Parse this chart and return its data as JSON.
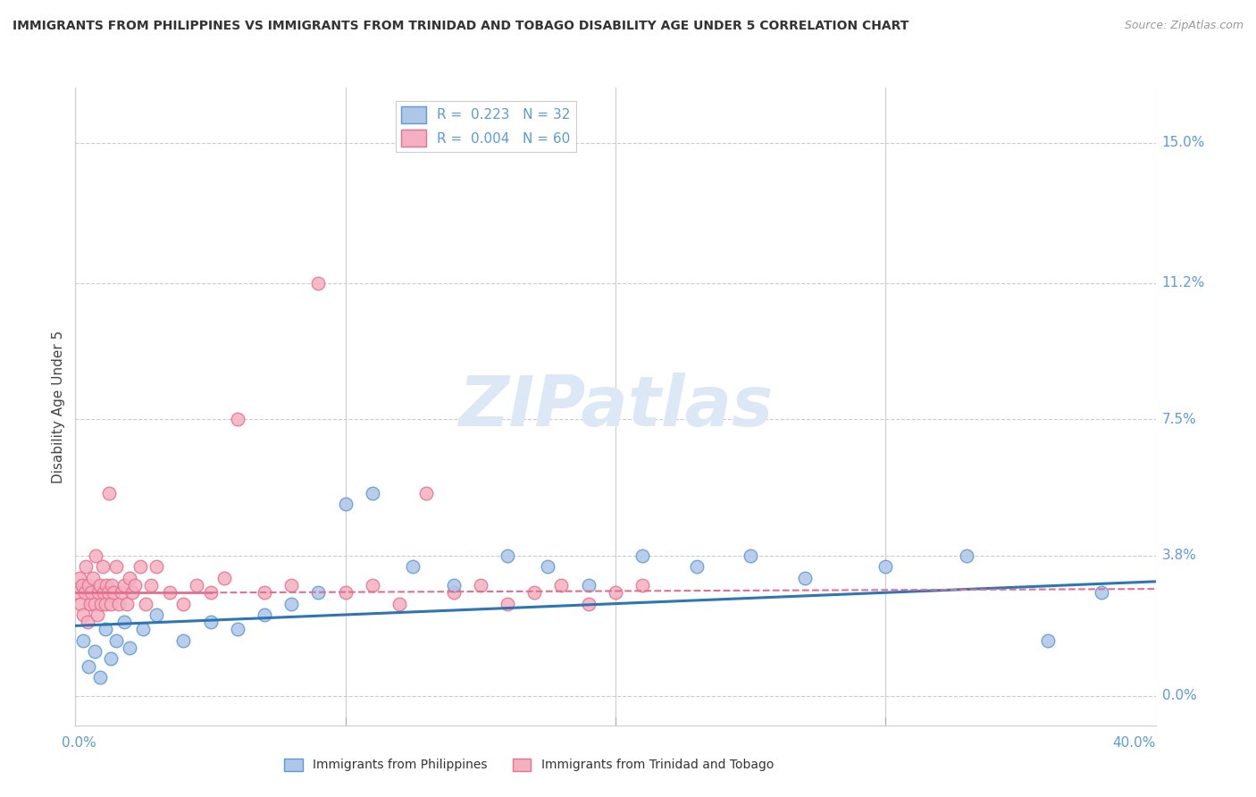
{
  "title": "IMMIGRANTS FROM PHILIPPINES VS IMMIGRANTS FROM TRINIDAD AND TOBAGO DISABILITY AGE UNDER 5 CORRELATION CHART",
  "source": "Source: ZipAtlas.com",
  "ylabel": "Disability Age Under 5",
  "ytick_labels": [
    "0.0%",
    "3.8%",
    "7.5%",
    "11.2%",
    "15.0%"
  ],
  "ytick_values": [
    0.0,
    3.8,
    7.5,
    11.2,
    15.0
  ],
  "xlim": [
    0.0,
    40.0
  ],
  "ylim": [
    -0.8,
    16.5
  ],
  "color_philippines": "#aec6e8",
  "color_tt": "#f4b0c0",
  "color_philippines_edge": "#5b9bd5",
  "color_tt_edge": "#e87090",
  "color_philippines_line": "#2e75b6",
  "color_tt_line": "#e07090",
  "watermark_color": "#dce8f5",
  "philippines_x": [
    0.3,
    0.5,
    0.7,
    0.9,
    1.1,
    1.3,
    1.5,
    1.8,
    2.0,
    2.5,
    3.0,
    4.0,
    5.0,
    6.0,
    7.0,
    8.0,
    9.0,
    10.0,
    11.0,
    12.5,
    14.0,
    16.0,
    17.5,
    19.0,
    21.0,
    23.0,
    25.0,
    27.0,
    30.0,
    33.0,
    36.0,
    38.0
  ],
  "philippines_y": [
    1.5,
    0.8,
    1.2,
    0.5,
    1.8,
    1.0,
    1.5,
    2.0,
    1.3,
    1.8,
    2.2,
    1.5,
    2.0,
    1.8,
    2.2,
    2.5,
    2.8,
    5.2,
    5.5,
    3.5,
    3.0,
    3.8,
    3.5,
    3.0,
    3.8,
    3.5,
    3.8,
    3.2,
    3.5,
    3.8,
    1.5,
    2.8
  ],
  "tt_x": [
    0.1,
    0.15,
    0.2,
    0.25,
    0.3,
    0.35,
    0.4,
    0.45,
    0.5,
    0.55,
    0.6,
    0.65,
    0.7,
    0.75,
    0.8,
    0.85,
    0.9,
    0.95,
    1.0,
    1.05,
    1.1,
    1.15,
    1.2,
    1.25,
    1.3,
    1.35,
    1.4,
    1.5,
    1.6,
    1.7,
    1.8,
    1.9,
    2.0,
    2.1,
    2.2,
    2.4,
    2.6,
    2.8,
    3.0,
    3.5,
    4.0,
    4.5,
    5.0,
    5.5,
    6.0,
    7.0,
    8.0,
    9.0,
    10.0,
    11.0,
    12.0,
    13.0,
    14.0,
    15.0,
    16.0,
    17.0,
    18.0,
    19.0,
    20.0,
    21.0
  ],
  "tt_y": [
    2.8,
    3.2,
    2.5,
    3.0,
    2.2,
    2.8,
    3.5,
    2.0,
    3.0,
    2.5,
    2.8,
    3.2,
    2.5,
    3.8,
    2.2,
    2.8,
    3.0,
    2.5,
    3.5,
    2.8,
    2.5,
    3.0,
    2.8,
    5.5,
    2.5,
    3.0,
    2.8,
    3.5,
    2.5,
    2.8,
    3.0,
    2.5,
    3.2,
    2.8,
    3.0,
    3.5,
    2.5,
    3.0,
    3.5,
    2.8,
    2.5,
    3.0,
    2.8,
    3.2,
    7.5,
    2.8,
    3.0,
    11.2,
    2.8,
    3.0,
    2.5,
    5.5,
    2.8,
    3.0,
    2.5,
    2.8,
    3.0,
    2.5,
    2.8,
    3.0
  ],
  "phil_line_x0": 0.0,
  "phil_line_y0": 1.9,
  "phil_line_x1": 40.0,
  "phil_line_y1": 3.1,
  "tt_line_x0_solid": 0.0,
  "tt_line_y0_solid": 2.8,
  "tt_line_x1_solid": 5.0,
  "tt_line_y1_solid": 2.8,
  "tt_line_x0_dash": 5.0,
  "tt_line_y0_dash": 2.8,
  "tt_line_x1_dash": 40.0,
  "tt_line_y1_dash": 2.9
}
